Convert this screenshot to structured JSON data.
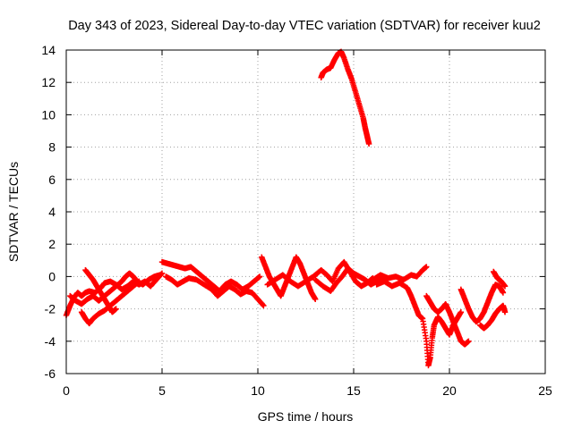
{
  "chart_data": {
    "type": "scatter",
    "title": "Day 343 of 2023, Sidereal Day-to-day VTEC variation (SDTVAR) for receiver kuu2",
    "xlabel": "GPS time / hours",
    "ylabel": "SDTVAR / TECUs",
    "xlim": [
      0,
      25
    ],
    "ylim": [
      -6,
      14
    ],
    "xticks": [
      0,
      5,
      10,
      15,
      20,
      25
    ],
    "yticks": [
      -6,
      -4,
      -2,
      0,
      2,
      4,
      6,
      8,
      10,
      12,
      14
    ],
    "grid": true,
    "marker": "+",
    "series": [
      {
        "name": "SDTVAR",
        "color": "#ff0000",
        "points": [
          [
            0.0,
            -2.4
          ],
          [
            0.2,
            -1.8
          ],
          [
            0.4,
            -1.3
          ],
          [
            0.6,
            -1.0
          ],
          [
            0.8,
            -1.2
          ],
          [
            1.0,
            -1.0
          ],
          [
            1.2,
            -0.9
          ],
          [
            1.5,
            -1.0
          ],
          [
            1.8,
            -0.7
          ],
          [
            2.0,
            -0.4
          ],
          [
            2.3,
            -0.3
          ],
          [
            2.6,
            -0.5
          ],
          [
            2.9,
            -0.8
          ],
          [
            3.2,
            -0.6
          ],
          [
            3.5,
            -0.3
          ],
          [
            3.8,
            -0.5
          ],
          [
            4.1,
            -0.3
          ],
          [
            4.4,
            -0.6
          ],
          [
            4.7,
            -0.2
          ],
          [
            5.0,
            0.2
          ],
          [
            0.2,
            -1.2
          ],
          [
            0.5,
            -1.5
          ],
          [
            0.8,
            -1.7
          ],
          [
            1.1,
            -1.4
          ],
          [
            1.4,
            -1.2
          ],
          [
            1.7,
            -1.5
          ],
          [
            2.0,
            -1.2
          ],
          [
            2.3,
            -0.9
          ],
          [
            2.6,
            -0.6
          ],
          [
            2.9,
            -0.3
          ],
          [
            3.1,
            0.0
          ],
          [
            3.3,
            0.2
          ],
          [
            3.5,
            0.0
          ],
          [
            3.7,
            -0.3
          ],
          [
            4.0,
            -0.5
          ],
          [
            4.3,
            -0.2
          ],
          [
            4.6,
            0.0
          ],
          [
            4.9,
            0.1
          ],
          [
            1.0,
            0.4
          ],
          [
            1.2,
            0.1
          ],
          [
            1.4,
            -0.2
          ],
          [
            1.6,
            -0.6
          ],
          [
            1.8,
            -1.0
          ],
          [
            2.0,
            -1.4
          ],
          [
            2.2,
            -1.8
          ],
          [
            2.4,
            -2.2
          ],
          [
            2.6,
            -2.0
          ],
          [
            0.8,
            -2.2
          ],
          [
            1.0,
            -2.6
          ],
          [
            1.2,
            -2.9
          ],
          [
            1.4,
            -2.6
          ],
          [
            1.7,
            -2.3
          ],
          [
            2.0,
            -2.1
          ],
          [
            2.3,
            -1.8
          ],
          [
            2.6,
            -1.5
          ],
          [
            2.9,
            -1.2
          ],
          [
            3.2,
            -0.9
          ],
          [
            3.5,
            -0.6
          ],
          [
            3.8,
            -0.3
          ],
          [
            5.0,
            0.9
          ],
          [
            5.3,
            0.8
          ],
          [
            5.6,
            0.7
          ],
          [
            5.9,
            0.6
          ],
          [
            6.2,
            0.5
          ],
          [
            6.5,
            0.6
          ],
          [
            6.8,
            0.3
          ],
          [
            7.1,
            0.0
          ],
          [
            7.4,
            -0.3
          ],
          [
            7.7,
            -0.6
          ],
          [
            8.0,
            -0.9
          ],
          [
            8.3,
            -0.5
          ],
          [
            8.6,
            -0.3
          ],
          [
            8.9,
            -0.5
          ],
          [
            9.2,
            -0.8
          ],
          [
            9.5,
            -0.6
          ],
          [
            9.8,
            -0.3
          ],
          [
            10.1,
            0.0
          ],
          [
            5.2,
            0.0
          ],
          [
            5.5,
            -0.2
          ],
          [
            5.8,
            -0.5
          ],
          [
            6.1,
            -0.3
          ],
          [
            6.4,
            -0.1
          ],
          [
            6.8,
            -0.2
          ],
          [
            7.2,
            -0.5
          ],
          [
            7.6,
            -0.8
          ],
          [
            7.9,
            -1.2
          ],
          [
            8.2,
            -0.9
          ],
          [
            8.5,
            -0.6
          ],
          [
            8.8,
            -0.8
          ],
          [
            9.1,
            -1.1
          ],
          [
            9.4,
            -0.9
          ],
          [
            9.7,
            -1.0
          ],
          [
            10.0,
            -1.4
          ],
          [
            10.3,
            -1.8
          ],
          [
            10.2,
            1.2
          ],
          [
            10.4,
            0.6
          ],
          [
            10.6,
            0.0
          ],
          [
            10.8,
            -0.4
          ],
          [
            11.0,
            -0.8
          ],
          [
            11.2,
            -1.2
          ],
          [
            11.4,
            -0.6
          ],
          [
            11.6,
            0.0
          ],
          [
            11.8,
            0.6
          ],
          [
            12.0,
            1.2
          ],
          [
            12.2,
            0.8
          ],
          [
            12.4,
            0.2
          ],
          [
            12.6,
            -0.4
          ],
          [
            12.8,
            -1.0
          ],
          [
            13.0,
            -1.4
          ],
          [
            10.5,
            -0.5
          ],
          [
            10.9,
            -0.2
          ],
          [
            11.3,
            0.1
          ],
          [
            11.7,
            -0.3
          ],
          [
            12.1,
            -0.6
          ],
          [
            12.5,
            -0.3
          ],
          [
            12.9,
            0.0
          ],
          [
            13.3,
            0.4
          ],
          [
            13.6,
            0.1
          ],
          [
            13.9,
            -0.3
          ],
          [
            14.2,
            0.5
          ],
          [
            14.5,
            0.9
          ],
          [
            14.8,
            0.3
          ],
          [
            15.1,
            -0.3
          ],
          [
            15.4,
            -0.6
          ],
          [
            15.7,
            -0.4
          ],
          [
            16.0,
            -0.1
          ],
          [
            13.0,
            -0.2
          ],
          [
            13.4,
            -0.6
          ],
          [
            13.8,
            -0.9
          ],
          [
            14.1,
            -0.4
          ],
          [
            14.4,
            0.0
          ],
          [
            14.7,
            0.5
          ],
          [
            15.0,
            0.2
          ],
          [
            15.3,
            0.0
          ],
          [
            15.6,
            -0.2
          ],
          [
            15.9,
            -0.5
          ],
          [
            16.2,
            -0.3
          ],
          [
            16.5,
            -0.1
          ],
          [
            16.0,
            -0.2
          ],
          [
            16.4,
            0.1
          ],
          [
            16.8,
            -0.1
          ],
          [
            17.2,
            0.0
          ],
          [
            17.6,
            -0.2
          ],
          [
            18.0,
            0.1
          ],
          [
            18.3,
            0.0
          ],
          [
            18.6,
            0.4
          ],
          [
            18.8,
            0.6
          ],
          [
            16.2,
            -0.5
          ],
          [
            16.6,
            -0.3
          ],
          [
            17.0,
            -0.6
          ],
          [
            17.4,
            -0.4
          ],
          [
            17.8,
            -0.7
          ],
          [
            18.0,
            -1.2
          ],
          [
            18.2,
            -1.8
          ],
          [
            18.4,
            -2.4
          ],
          [
            18.6,
            -2.6
          ],
          [
            18.8,
            -4.0
          ],
          [
            18.9,
            -5.5
          ],
          [
            19.0,
            -5.0
          ],
          [
            19.1,
            -3.8
          ],
          [
            19.2,
            -3.0
          ],
          [
            19.4,
            -2.5
          ],
          [
            19.6,
            -2.8
          ],
          [
            19.8,
            -3.2
          ],
          [
            20.0,
            -3.6
          ],
          [
            20.2,
            -3.0
          ],
          [
            20.4,
            -2.6
          ],
          [
            20.6,
            -2.2
          ],
          [
            18.8,
            -1.2
          ],
          [
            19.0,
            -1.6
          ],
          [
            19.2,
            -2.0
          ],
          [
            19.4,
            -2.2
          ],
          [
            19.6,
            -2.0
          ],
          [
            19.8,
            -1.7
          ],
          [
            20.0,
            -2.2
          ],
          [
            20.2,
            -2.8
          ],
          [
            20.4,
            -3.4
          ],
          [
            20.6,
            -4.0
          ],
          [
            20.8,
            -4.2
          ],
          [
            21.0,
            -4.0
          ],
          [
            20.6,
            -0.8
          ],
          [
            20.8,
            -1.4
          ],
          [
            21.0,
            -2.0
          ],
          [
            21.2,
            -2.5
          ],
          [
            21.4,
            -2.8
          ],
          [
            21.6,
            -2.6
          ],
          [
            21.8,
            -2.2
          ],
          [
            22.0,
            -1.6
          ],
          [
            22.2,
            -1.0
          ],
          [
            22.4,
            -0.5
          ],
          [
            22.6,
            -0.6
          ],
          [
            22.8,
            -1.0
          ],
          [
            21.6,
            -3.0
          ],
          [
            21.8,
            -3.2
          ],
          [
            22.0,
            -3.0
          ],
          [
            22.2,
            -2.7
          ],
          [
            22.4,
            -2.3
          ],
          [
            22.6,
            -2.0
          ],
          [
            22.8,
            -1.8
          ],
          [
            22.9,
            -2.2
          ],
          [
            22.3,
            0.3
          ],
          [
            22.5,
            -0.1
          ],
          [
            22.7,
            -0.3
          ],
          [
            22.9,
            -0.6
          ],
          [
            13.3,
            12.3
          ],
          [
            13.4,
            12.6
          ],
          [
            13.6,
            12.8
          ],
          [
            13.8,
            12.9
          ],
          [
            14.0,
            13.4
          ],
          [
            14.2,
            13.8
          ],
          [
            14.35,
            13.9
          ],
          [
            14.5,
            13.5
          ],
          [
            14.7,
            12.8
          ],
          [
            14.9,
            12.2
          ],
          [
            15.1,
            11.4
          ],
          [
            15.3,
            10.6
          ],
          [
            15.5,
            9.8
          ],
          [
            15.6,
            9.2
          ],
          [
            15.7,
            8.7
          ],
          [
            15.8,
            8.2
          ]
        ]
      }
    ]
  }
}
